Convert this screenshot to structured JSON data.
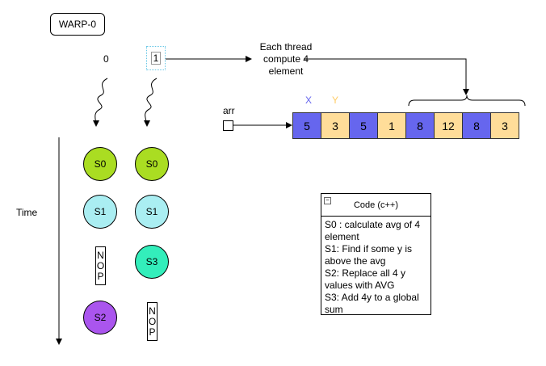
{
  "warp": {
    "label": "WARP-0"
  },
  "threads": [
    {
      "id": "0"
    },
    {
      "id": "1"
    }
  ],
  "note": {
    "text": "Each thread compute 4 element"
  },
  "arr_label": "arr",
  "axis_labels": {
    "x": "X",
    "y": "Y"
  },
  "array": {
    "values": [
      "5",
      "3",
      "5",
      "1",
      "8",
      "12",
      "8",
      "3"
    ],
    "colors": [
      "#6666ee",
      "#ffdd99",
      "#6666ee",
      "#ffdd99",
      "#6666ee",
      "#ffdd99",
      "#6666ee",
      "#ffdd99"
    ]
  },
  "time_label": "Time",
  "thread0_steps": [
    {
      "type": "circle",
      "label": "S0",
      "color": "#aadd22"
    },
    {
      "type": "circle",
      "label": "S1",
      "color": "#aaeef2"
    },
    {
      "type": "nop",
      "label": "NOP"
    },
    {
      "type": "circle",
      "label": "S2",
      "color": "#aa55ee"
    }
  ],
  "thread1_steps": [
    {
      "type": "circle",
      "label": "S0",
      "color": "#aadd22"
    },
    {
      "type": "circle",
      "label": "S1",
      "color": "#aaeef2"
    },
    {
      "type": "circle",
      "label": "S3",
      "color": "#33eebb"
    },
    {
      "type": "nop",
      "label": "NOP"
    }
  ],
  "code": {
    "title": "Code (c++)",
    "lines": [
      "S0 : calculate avg of 4 element",
      "S1: Find if some y is above the avg",
      "S2: Replace all 4 y values with AVG",
      "S3: Add 4y to a global sum"
    ]
  },
  "colors": {
    "x_label": "#6666ee",
    "y_label": "#ffcc66"
  }
}
